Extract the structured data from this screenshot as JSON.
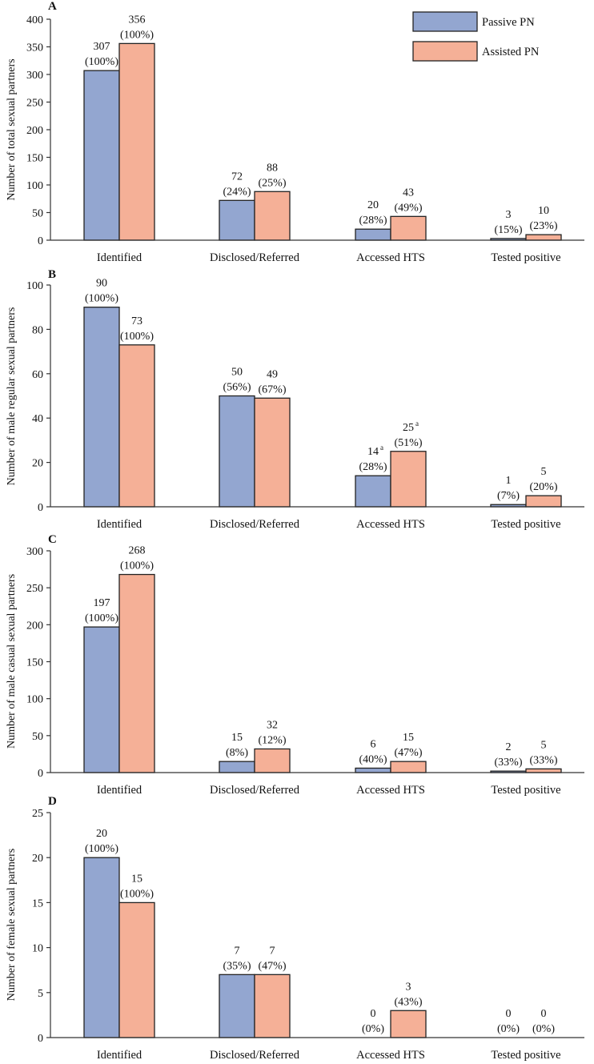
{
  "chart_data": [
    {
      "type": "bar",
      "panel": "A",
      "ylabel": "Number of total sexual partners",
      "ylim": [
        0,
        400
      ],
      "yticks": [
        0,
        50,
        100,
        150,
        200,
        250,
        300,
        350,
        400
      ],
      "categories": [
        "Identified",
        "Disclosed/Referred",
        "Accessed HTS",
        "Tested positive"
      ],
      "series": [
        {
          "name": "Passive PN",
          "color": "#93a6d0",
          "values": [
            307,
            72,
            20,
            3
          ],
          "labels": [
            [
              "307",
              "(100%)"
            ],
            [
              "72",
              "(24%)"
            ],
            [
              "20",
              "(28%)"
            ],
            [
              "3",
              "(15%)"
            ]
          ],
          "superscripts": [
            "",
            "",
            "",
            ""
          ]
        },
        {
          "name": "Assisted PN",
          "color": "#f5b097",
          "values": [
            356,
            88,
            43,
            10
          ],
          "labels": [
            [
              "356",
              "(100%)"
            ],
            [
              "88",
              "(25%)"
            ],
            [
              "43",
              "(49%)"
            ],
            [
              "10",
              "(23%)"
            ]
          ],
          "superscripts": [
            "",
            "",
            "",
            ""
          ]
        }
      ]
    },
    {
      "type": "bar",
      "panel": "B",
      "ylabel": "Number of male regular sexual partners",
      "ylim": [
        0,
        100
      ],
      "yticks": [
        0,
        20,
        40,
        60,
        80,
        100
      ],
      "categories": [
        "Identified",
        "Disclosed/Referred",
        "Accessed HTS",
        "Tested positive"
      ],
      "series": [
        {
          "name": "Passive PN",
          "color": "#93a6d0",
          "values": [
            90,
            50,
            14,
            1
          ],
          "labels": [
            [
              "90",
              "(100%)"
            ],
            [
              "50",
              "(56%)"
            ],
            [
              "14",
              "(28%)"
            ],
            [
              "1",
              "(7%)"
            ]
          ],
          "superscripts": [
            "",
            "",
            "a",
            ""
          ]
        },
        {
          "name": "Assisted PN",
          "color": "#f5b097",
          "values": [
            73,
            49,
            25,
            5
          ],
          "labels": [
            [
              "73",
              "(100%)"
            ],
            [
              "49",
              "(67%)"
            ],
            [
              "25",
              "(51%)"
            ],
            [
              "5",
              "(20%)"
            ]
          ],
          "superscripts": [
            "",
            "",
            "a",
            ""
          ]
        }
      ]
    },
    {
      "type": "bar",
      "panel": "C",
      "ylabel": "Number of male casual sexual partners",
      "ylim": [
        0,
        300
      ],
      "yticks": [
        0,
        50,
        100,
        150,
        200,
        250,
        300
      ],
      "categories": [
        "Identified",
        "Disclosed/Referred",
        "Accessed HTS",
        "Tested positive"
      ],
      "series": [
        {
          "name": "Passive PN",
          "color": "#93a6d0",
          "values": [
            197,
            15,
            6,
            2
          ],
          "labels": [
            [
              "197",
              "(100%)"
            ],
            [
              "15",
              "(8%)"
            ],
            [
              "6",
              "(40%)"
            ],
            [
              "2",
              "(33%)"
            ]
          ],
          "superscripts": [
            "",
            "",
            "",
            ""
          ]
        },
        {
          "name": "Assisted PN",
          "color": "#f5b097",
          "values": [
            268,
            32,
            15,
            5
          ],
          "labels": [
            [
              "268",
              "(100%)"
            ],
            [
              "32",
              "(12%)"
            ],
            [
              "15",
              "(47%)"
            ],
            [
              "5",
              "(33%)"
            ]
          ],
          "superscripts": [
            "",
            "",
            "",
            ""
          ]
        }
      ]
    },
    {
      "type": "bar",
      "panel": "D",
      "ylabel": "Number of female sexual partners",
      "ylim": [
        0,
        25
      ],
      "yticks": [
        0,
        5,
        10,
        15,
        20,
        25
      ],
      "categories": [
        "Identified",
        "Disclosed/Referred",
        "Accessed HTS",
        "Tested positive"
      ],
      "series": [
        {
          "name": "Passive PN",
          "color": "#93a6d0",
          "values": [
            20,
            7,
            0,
            0
          ],
          "labels": [
            [
              "20",
              "(100%)"
            ],
            [
              "7",
              "(35%)"
            ],
            [
              "0",
              "(0%)"
            ],
            [
              "0",
              "(0%)"
            ]
          ],
          "superscripts": [
            "",
            "",
            "",
            ""
          ]
        },
        {
          "name": "Assisted PN",
          "color": "#f5b097",
          "values": [
            15,
            7,
            3,
            0
          ],
          "labels": [
            [
              "15",
              "(100%)"
            ],
            [
              "7",
              "(47%)"
            ],
            [
              "3",
              "(43%)"
            ],
            [
              "0",
              "(0%)"
            ]
          ],
          "superscripts": [
            "",
            "",
            "",
            ""
          ]
        }
      ]
    }
  ],
  "legend": {
    "position": "top-right",
    "items": [
      {
        "name": "Passive PN",
        "color": "#93a6d0"
      },
      {
        "name": "Assisted PN",
        "color": "#f5b097"
      }
    ]
  }
}
